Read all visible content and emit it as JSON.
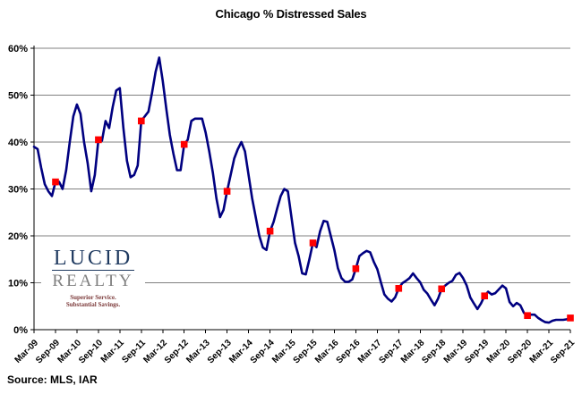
{
  "title": "Chicago % Distressed Sales",
  "source": "Source: MLS, IAR",
  "logo": {
    "name": "LUCID",
    "subname": "REALTY",
    "tagline_line1": "Superior Service.",
    "tagline_line2": "Substantial Savings."
  },
  "style_colors": {
    "line": "#000080",
    "marker": "#ff0000",
    "grid": "#808080",
    "axis": "#000000",
    "text": "#000000"
  },
  "chart_data": {
    "type": "line",
    "title": "Chicago % Distressed Sales",
    "x_start": "Mar-09",
    "x_end": "Sep-21",
    "frequency": "monthly",
    "xlabel": "",
    "ylabel": "",
    "ylim": [
      0,
      60
    ],
    "ytick_step": 10,
    "ytick_suffix": "%",
    "grid": true,
    "legend": "none",
    "tick_labels": [
      "Mar-09",
      "Sep-09",
      "Mar-10",
      "Sep-10",
      "Mar-11",
      "Sep-11",
      "Mar-12",
      "Sep-12",
      "Mar-13",
      "Sep-13",
      "Mar-14",
      "Sep-14",
      "Mar-15",
      "Sep-15",
      "Mar-16",
      "Sep-16",
      "Mar-17",
      "Sep-17",
      "Mar-18",
      "Sep-18",
      "Mar-19",
      "Sep-19",
      "Mar-20",
      "Sep-20",
      "Mar-21",
      "Sep-21"
    ],
    "series": [
      {
        "name": "Chicago % distressed sales, monthly",
        "color": "#000080",
        "values": [
          39,
          38.5,
          34.5,
          31,
          29.5,
          28.5,
          31.5,
          31.5,
          30,
          34,
          40,
          45.5,
          48,
          46,
          40,
          35.5,
          29.5,
          33,
          40.5,
          40.3,
          44.5,
          43,
          47.5,
          51,
          51.5,
          43,
          36,
          32.5,
          33,
          35,
          44.5,
          45.5,
          46.5,
          50.5,
          55,
          58,
          53,
          47,
          41.5,
          37.5,
          34,
          34,
          39.5,
          40.5,
          44.5,
          45,
          45,
          45,
          42,
          38,
          33.5,
          28,
          24,
          25.5,
          29.5,
          33,
          36.5,
          38.5,
          40,
          38,
          33,
          28,
          24,
          20,
          17.5,
          17,
          21,
          23,
          25.8,
          28.5,
          30,
          29.5,
          24,
          18.5,
          15.7,
          12,
          11.8,
          15,
          18.5,
          17.6,
          21,
          23.2,
          23,
          20,
          17,
          13.1,
          11,
          10.2,
          10.2,
          10.7,
          13,
          15.7,
          16.3,
          16.8,
          16.5,
          14.5,
          12.9,
          10.1,
          7.5,
          6.6,
          6,
          6.9,
          8.8,
          9.9,
          10.4,
          11,
          12,
          11,
          10.1,
          8.5,
          7.7,
          6.4,
          5.2,
          6.6,
          8.7,
          9.4,
          10,
          10.4,
          11.7,
          12.1,
          11,
          9.4,
          6.9,
          5.6,
          4.4,
          5.6,
          7.2,
          8.1,
          7.5,
          7.8,
          8.6,
          9.4,
          8.8,
          5.9,
          5,
          5.7,
          5.2,
          3.6,
          3,
          3.2,
          3.2,
          2.5,
          2,
          1.6,
          1.5,
          1.9,
          2.1,
          2.1,
          2.1,
          2.2,
          2.5
        ]
      },
      {
        "name": "September values (red square markers)",
        "color": "#ff0000",
        "marker": "square",
        "x_labels": [
          "Sep-09",
          "Sep-10",
          "Sep-11",
          "Sep-12",
          "Sep-13",
          "Sep-14",
          "Sep-15",
          "Sep-16",
          "Sep-17",
          "Sep-18",
          "Sep-19",
          "Sep-20",
          "Sep-21"
        ],
        "values": [
          31.5,
          40.5,
          44.5,
          39.5,
          29.5,
          21,
          18.5,
          13,
          8.8,
          8.7,
          7.2,
          3,
          2.5
        ]
      }
    ]
  }
}
